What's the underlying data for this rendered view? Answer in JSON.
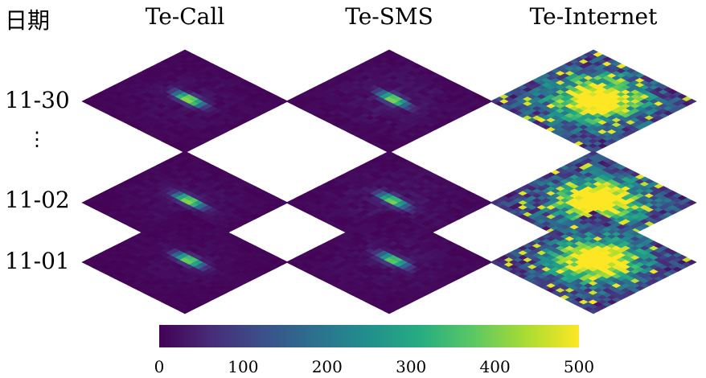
{
  "date_header": "日期",
  "columns": [
    "Te-Call",
    "Te-SMS",
    "Te-Internet"
  ],
  "rows": [
    "11-30",
    "⋮",
    "11-02",
    "11-01"
  ],
  "colors": {
    "viridis_stops": [
      "#440154",
      "#472c7a",
      "#3b518b",
      "#2c718e",
      "#21908d",
      "#27ad81",
      "#5cc863",
      "#aadc32",
      "#fde725"
    ],
    "background_cell": "#3b1f62"
  },
  "chart_data": {
    "type": "heatmap",
    "title": "",
    "panels": [
      {
        "row": "11-30",
        "column": "Te-Call",
        "hotspot_peak": 500,
        "typical": 30
      },
      {
        "row": "11-30",
        "column": "Te-SMS",
        "hotspot_peak": 450,
        "typical": 40
      },
      {
        "row": "11-30",
        "column": "Te-Internet",
        "hotspot_peak": 500,
        "typical": 250
      },
      {
        "row": "11-02",
        "column": "Te-Call",
        "hotspot_peak": 480,
        "typical": 30
      },
      {
        "row": "11-02",
        "column": "Te-SMS",
        "hotspot_peak": 430,
        "typical": 40
      },
      {
        "row": "11-02",
        "column": "Te-Internet",
        "hotspot_peak": 500,
        "typical": 240
      },
      {
        "row": "11-01",
        "column": "Te-Call",
        "hotspot_peak": 460,
        "typical": 25
      },
      {
        "row": "11-01",
        "column": "Te-SMS",
        "hotspot_peak": 420,
        "typical": 35
      },
      {
        "row": "11-01",
        "column": "Te-Internet",
        "hotspot_peak": 500,
        "typical": 230
      }
    ],
    "colorbar": {
      "range": [
        0,
        500
      ],
      "ticks": [
        "0",
        "100",
        "200",
        "300",
        "400",
        "500"
      ],
      "colormap": "viridis"
    }
  }
}
